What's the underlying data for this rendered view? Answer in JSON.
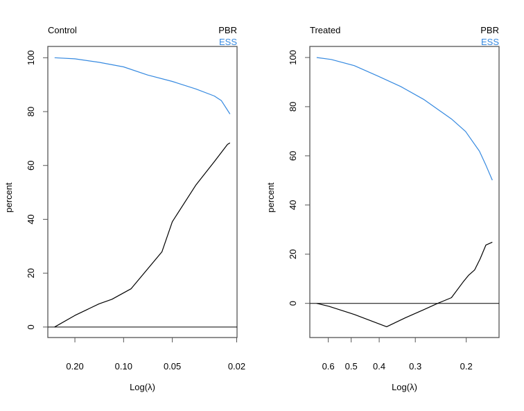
{
  "colors": {
    "PBR": "#000000",
    "ESS": "#3589e0",
    "axis": "#555555"
  },
  "chart_data": [
    {
      "type": "line",
      "title": "Control",
      "xlabel": "Log(λ)",
      "ylabel": "percent",
      "x_scale": "log",
      "x_reversed": true,
      "xlim": [
        0.294,
        0.0199
      ],
      "ylim": [
        -3.9,
        104.2
      ],
      "x_ticks": [
        0.2,
        0.1,
        0.05,
        0.02
      ],
      "x_tick_labels": [
        "0.20",
        "0.10",
        "0.05",
        "0.02"
      ],
      "y_ticks": [
        0,
        20,
        40,
        60,
        80,
        100
      ],
      "y_tick_labels": [
        "0",
        "20",
        "40",
        "60",
        "80",
        "100"
      ],
      "reference_line": 0,
      "legend": [
        "PBR",
        "ESS"
      ],
      "legend_position": "top-right",
      "series": [
        {
          "name": "PBR",
          "x": [
            0.267,
            0.2,
            0.142,
            0.118,
            0.09,
            0.058,
            0.05,
            0.0357,
            0.0275,
            0.0228,
            0.022
          ],
          "y": [
            0,
            4.3,
            8.6,
            10.3,
            14.2,
            27.9,
            39.1,
            52.8,
            61.4,
            67.8,
            68.4
          ]
        },
        {
          "name": "ESS",
          "x": [
            0.267,
            0.2,
            0.142,
            0.1,
            0.0711,
            0.05,
            0.0357,
            0.0275,
            0.0249,
            0.022
          ],
          "y": [
            100,
            99.6,
            98.3,
            96.6,
            93.6,
            91.2,
            88.4,
            85.8,
            84.1,
            79.1
          ]
        }
      ]
    },
    {
      "type": "line",
      "title": "Treated",
      "xlabel": "Log(λ)",
      "ylabel": "percent",
      "x_scale": "log",
      "x_reversed": true,
      "xlim": [
        0.695,
        0.154
      ],
      "ylim": [
        -13.9,
        104.5
      ],
      "x_ticks": [
        0.6,
        0.5,
        0.4,
        0.3,
        0.2
      ],
      "x_tick_labels": [
        "0.6",
        "0.5",
        "0.4",
        "0.3",
        "0.2"
      ],
      "y_ticks": [
        0,
        20,
        40,
        60,
        80,
        100
      ],
      "y_tick_labels": [
        "0",
        "20",
        "40",
        "60",
        "80",
        "100"
      ],
      "reference_line": 0,
      "legend": [
        "PBR",
        "ESS"
      ],
      "legend_position": "top-right",
      "series": [
        {
          "name": "PBR",
          "x": [
            0.658,
            0.597,
            0.488,
            0.377,
            0.325,
            0.281,
            0.251,
            0.225,
            0.205,
            0.196,
            0.187,
            0.179,
            0.171,
            0.1625
          ],
          "y": [
            0,
            -1.2,
            -4.5,
            -9.5,
            -5.9,
            -2.6,
            0,
            2.3,
            8.7,
            11.5,
            13.6,
            18.1,
            23.7,
            24.9
          ]
        },
        {
          "name": "ESS",
          "x": [
            0.658,
            0.586,
            0.488,
            0.405,
            0.337,
            0.281,
            0.225,
            0.201,
            0.18,
            0.171,
            0.1625
          ],
          "y": [
            100,
            99.2,
            96.7,
            92.5,
            88.2,
            83.0,
            75.0,
            69.9,
            61.9,
            56.2,
            50.1
          ]
        }
      ]
    }
  ]
}
